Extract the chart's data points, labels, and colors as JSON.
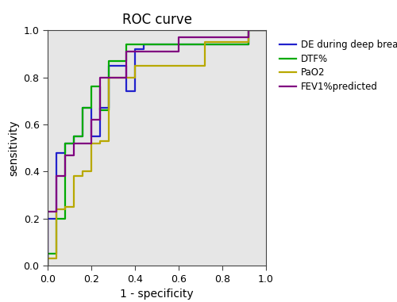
{
  "title": "ROC curve",
  "xlabel": "1 - specificity",
  "ylabel": "sensitivity",
  "xlim": [
    0.0,
    1.0
  ],
  "ylim": [
    0.0,
    1.0
  ],
  "xticks": [
    0.0,
    0.2,
    0.4,
    0.6,
    0.8,
    1.0
  ],
  "yticks": [
    0.0,
    0.2,
    0.4,
    0.6,
    0.8,
    1.0
  ],
  "background_color": "#e6e6e6",
  "figure_background": "#ffffff",
  "curves": {
    "DE during deep breathing": {
      "color": "#2222cc",
      "x": [
        0.0,
        0.0,
        0.04,
        0.04,
        0.08,
        0.08,
        0.12,
        0.12,
        0.16,
        0.16,
        0.2,
        0.2,
        0.24,
        0.24,
        0.28,
        0.28,
        0.36,
        0.36,
        0.4,
        0.4,
        0.44,
        0.44,
        0.6,
        0.6,
        0.68,
        0.68,
        0.76,
        0.76,
        0.92,
        0.92,
        1.0
      ],
      "y": [
        0.0,
        0.2,
        0.2,
        0.48,
        0.48,
        0.52,
        0.52,
        0.55,
        0.55,
        0.67,
        0.67,
        0.55,
        0.55,
        0.67,
        0.67,
        0.85,
        0.85,
        0.74,
        0.74,
        0.92,
        0.92,
        0.94,
        0.94,
        0.94,
        0.94,
        0.94,
        0.94,
        0.94,
        0.94,
        1.0,
        1.0
      ]
    },
    "DTF%": {
      "color": "#00aa00",
      "x": [
        0.0,
        0.0,
        0.04,
        0.04,
        0.08,
        0.08,
        0.12,
        0.12,
        0.16,
        0.16,
        0.2,
        0.2,
        0.24,
        0.24,
        0.28,
        0.28,
        0.36,
        0.36,
        0.4,
        0.4,
        0.6,
        0.6,
        0.72,
        0.72,
        0.92,
        0.92,
        1.0
      ],
      "y": [
        0.0,
        0.05,
        0.05,
        0.2,
        0.2,
        0.52,
        0.52,
        0.55,
        0.55,
        0.67,
        0.67,
        0.76,
        0.76,
        0.66,
        0.66,
        0.87,
        0.87,
        0.94,
        0.94,
        0.94,
        0.94,
        0.94,
        0.94,
        0.94,
        0.94,
        1.0,
        1.0
      ]
    },
    "PaO2": {
      "color": "#b8a800",
      "x": [
        0.0,
        0.0,
        0.04,
        0.04,
        0.08,
        0.08,
        0.12,
        0.12,
        0.16,
        0.16,
        0.2,
        0.2,
        0.24,
        0.24,
        0.28,
        0.28,
        0.36,
        0.36,
        0.4,
        0.4,
        0.44,
        0.44,
        0.56,
        0.56,
        0.6,
        0.6,
        0.72,
        0.72,
        0.92,
        0.92,
        1.0
      ],
      "y": [
        0.0,
        0.03,
        0.03,
        0.24,
        0.24,
        0.25,
        0.25,
        0.38,
        0.38,
        0.4,
        0.4,
        0.52,
        0.52,
        0.53,
        0.53,
        0.8,
        0.8,
        0.8,
        0.8,
        0.85,
        0.85,
        0.85,
        0.85,
        0.85,
        0.85,
        0.85,
        0.85,
        0.95,
        0.95,
        1.0,
        1.0
      ]
    },
    "FEV1%predicted": {
      "color": "#800080",
      "x": [
        0.0,
        0.0,
        0.04,
        0.04,
        0.08,
        0.08,
        0.12,
        0.12,
        0.16,
        0.16,
        0.2,
        0.2,
        0.24,
        0.24,
        0.32,
        0.32,
        0.36,
        0.36,
        0.4,
        0.4,
        0.6,
        0.6,
        0.64,
        0.64,
        0.92,
        0.92,
        1.0
      ],
      "y": [
        0.0,
        0.23,
        0.23,
        0.38,
        0.38,
        0.47,
        0.47,
        0.52,
        0.52,
        0.52,
        0.52,
        0.62,
        0.62,
        0.8,
        0.8,
        0.8,
        0.8,
        0.91,
        0.91,
        0.91,
        0.91,
        0.97,
        0.97,
        0.97,
        0.97,
        1.0,
        1.0
      ]
    }
  },
  "legend_order": [
    "DE during deep breathing",
    "DTF%",
    "PaO2",
    "FEV1%predicted"
  ],
  "legend_colors": [
    "#2222cc",
    "#00aa00",
    "#b8a800",
    "#800080"
  ],
  "title_fontsize": 12,
  "axis_label_fontsize": 10,
  "tick_fontsize": 9,
  "legend_fontsize": 8.5,
  "linewidth": 1.6
}
